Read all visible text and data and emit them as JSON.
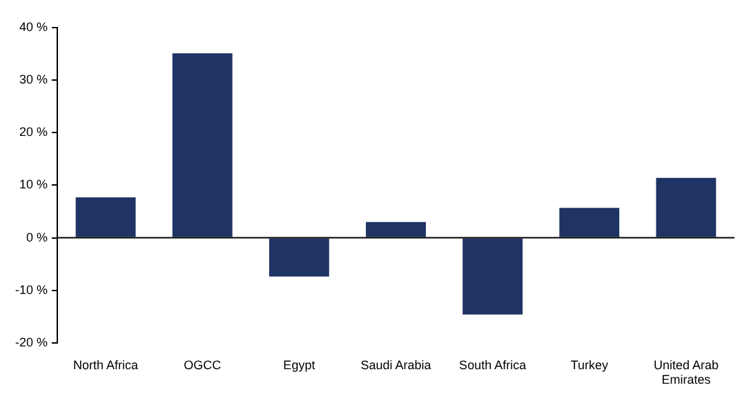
{
  "chart_data": {
    "type": "bar",
    "categories": [
      "North Africa",
      "OGCC",
      "Egypt",
      "Saudi Arabia",
      "South Africa",
      "Turkey",
      "United Arab Emirates"
    ],
    "values": [
      7.7,
      35.1,
      -7.4,
      3.0,
      -14.6,
      5.7,
      11.4
    ],
    "color": "#1f3464",
    "ylim": [
      -20,
      40
    ],
    "yticks": [
      {
        "value": -20,
        "label": "-20 %"
      },
      {
        "value": -10,
        "label": "-10 %"
      },
      {
        "value": 0,
        "label": "0 %"
      },
      {
        "value": 10,
        "label": "10 %"
      },
      {
        "value": 20,
        "label": "20 %"
      },
      {
        "value": 30,
        "label": "30 %"
      },
      {
        "value": 40,
        "label": "40 %"
      }
    ],
    "grid": false,
    "ref_lines": [
      {
        "axis": "y",
        "value": 0,
        "color": "#000000"
      }
    ],
    "legend": false
  }
}
